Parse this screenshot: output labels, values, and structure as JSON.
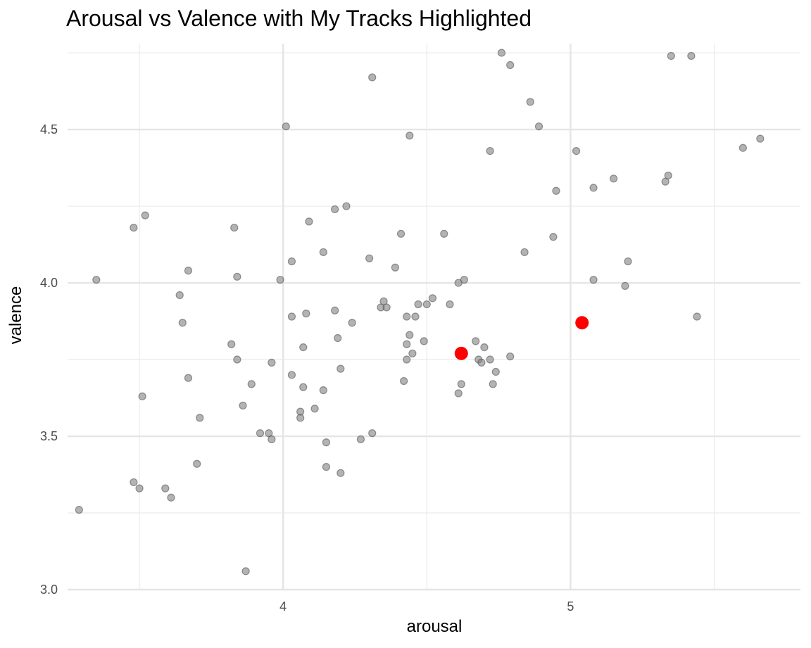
{
  "chart_data": {
    "type": "scatter",
    "title": "Arousal vs Valence with My Tracks Highlighted",
    "xlabel": "arousal",
    "ylabel": "valence",
    "xlim": [
      3.25,
      5.8
    ],
    "ylim": [
      3.0,
      4.78
    ],
    "x_ticks": [
      "4",
      "5"
    ],
    "y_ticks": [
      "3.0",
      "3.5",
      "4.0",
      "4.5"
    ],
    "grid": true,
    "colors": {
      "points": "#808080",
      "highlight": "#ff0000"
    },
    "series": [
      {
        "points": [
          [
            3.29,
            3.26
          ],
          [
            3.35,
            4.01
          ],
          [
            3.48,
            4.18
          ],
          [
            3.48,
            3.35
          ],
          [
            3.5,
            3.33
          ],
          [
            3.51,
            3.63
          ],
          [
            3.52,
            4.22
          ],
          [
            3.59,
            3.33
          ],
          [
            3.61,
            3.3
          ],
          [
            3.64,
            3.96
          ],
          [
            3.65,
            3.87
          ],
          [
            3.67,
            4.04
          ],
          [
            3.67,
            3.69
          ],
          [
            3.7,
            3.41
          ],
          [
            3.71,
            3.56
          ],
          [
            3.82,
            3.8
          ],
          [
            3.83,
            4.18
          ],
          [
            3.84,
            4.02
          ],
          [
            3.84,
            3.75
          ],
          [
            3.86,
            3.6
          ],
          [
            3.87,
            3.06
          ],
          [
            3.89,
            3.67
          ],
          [
            3.92,
            3.51
          ],
          [
            3.95,
            3.51
          ],
          [
            3.96,
            3.74
          ],
          [
            3.96,
            3.49
          ],
          [
            3.99,
            4.01
          ],
          [
            4.01,
            4.51
          ],
          [
            4.03,
            4.07
          ],
          [
            4.03,
            3.89
          ],
          [
            4.03,
            3.7
          ],
          [
            4.06,
            3.58
          ],
          [
            4.06,
            3.56
          ],
          [
            4.07,
            3.79
          ],
          [
            4.07,
            3.66
          ],
          [
            4.08,
            3.9
          ],
          [
            4.09,
            4.2
          ],
          [
            4.11,
            3.59
          ],
          [
            4.14,
            3.65
          ],
          [
            4.14,
            4.1
          ],
          [
            4.15,
            3.4
          ],
          [
            4.15,
            3.48
          ],
          [
            4.18,
            4.24
          ],
          [
            4.18,
            3.91
          ],
          [
            4.19,
            3.82
          ],
          [
            4.2,
            3.72
          ],
          [
            4.2,
            3.38
          ],
          [
            4.22,
            4.25
          ],
          [
            4.24,
            3.87
          ],
          [
            4.27,
            3.49
          ],
          [
            4.3,
            4.08
          ],
          [
            4.31,
            3.51
          ],
          [
            4.31,
            4.67
          ],
          [
            4.34,
            3.92
          ],
          [
            4.35,
            3.94
          ],
          [
            4.36,
            3.92
          ],
          [
            4.39,
            4.05
          ],
          [
            4.41,
            4.16
          ],
          [
            4.42,
            3.68
          ],
          [
            4.43,
            3.89
          ],
          [
            4.43,
            3.8
          ],
          [
            4.43,
            3.75
          ],
          [
            4.44,
            4.48
          ],
          [
            4.44,
            3.83
          ],
          [
            4.45,
            3.77
          ],
          [
            4.46,
            3.89
          ],
          [
            4.47,
            3.93
          ],
          [
            4.49,
            3.81
          ],
          [
            4.5,
            3.93
          ],
          [
            4.52,
            3.95
          ],
          [
            4.56,
            4.16
          ],
          [
            4.58,
            3.93
          ],
          [
            4.61,
            4.0
          ],
          [
            4.61,
            3.64
          ],
          [
            4.62,
            3.67
          ],
          [
            4.63,
            4.01
          ],
          [
            4.67,
            3.81
          ],
          [
            4.68,
            3.75
          ],
          [
            4.69,
            3.74
          ],
          [
            4.7,
            3.79
          ],
          [
            4.72,
            4.43
          ],
          [
            4.72,
            3.75
          ],
          [
            4.73,
            3.67
          ],
          [
            4.74,
            3.71
          ],
          [
            4.76,
            4.75
          ],
          [
            4.79,
            4.71
          ],
          [
            4.79,
            3.76
          ],
          [
            4.84,
            4.1
          ],
          [
            4.86,
            4.59
          ],
          [
            4.89,
            4.51
          ],
          [
            4.94,
            4.15
          ],
          [
            4.95,
            4.3
          ],
          [
            5.02,
            4.43
          ],
          [
            5.08,
            4.01
          ],
          [
            5.08,
            4.31
          ],
          [
            5.15,
            4.34
          ],
          [
            5.19,
            3.99
          ],
          [
            5.2,
            4.07
          ],
          [
            5.33,
            4.33
          ],
          [
            5.34,
            4.35
          ],
          [
            5.35,
            4.74
          ],
          [
            5.42,
            4.74
          ],
          [
            5.44,
            3.89
          ],
          [
            5.6,
            4.44
          ],
          [
            5.66,
            4.47
          ]
        ]
      },
      {
        "points": [
          [
            4.62,
            3.77
          ],
          [
            5.04,
            3.87
          ]
        ]
      }
    ]
  }
}
